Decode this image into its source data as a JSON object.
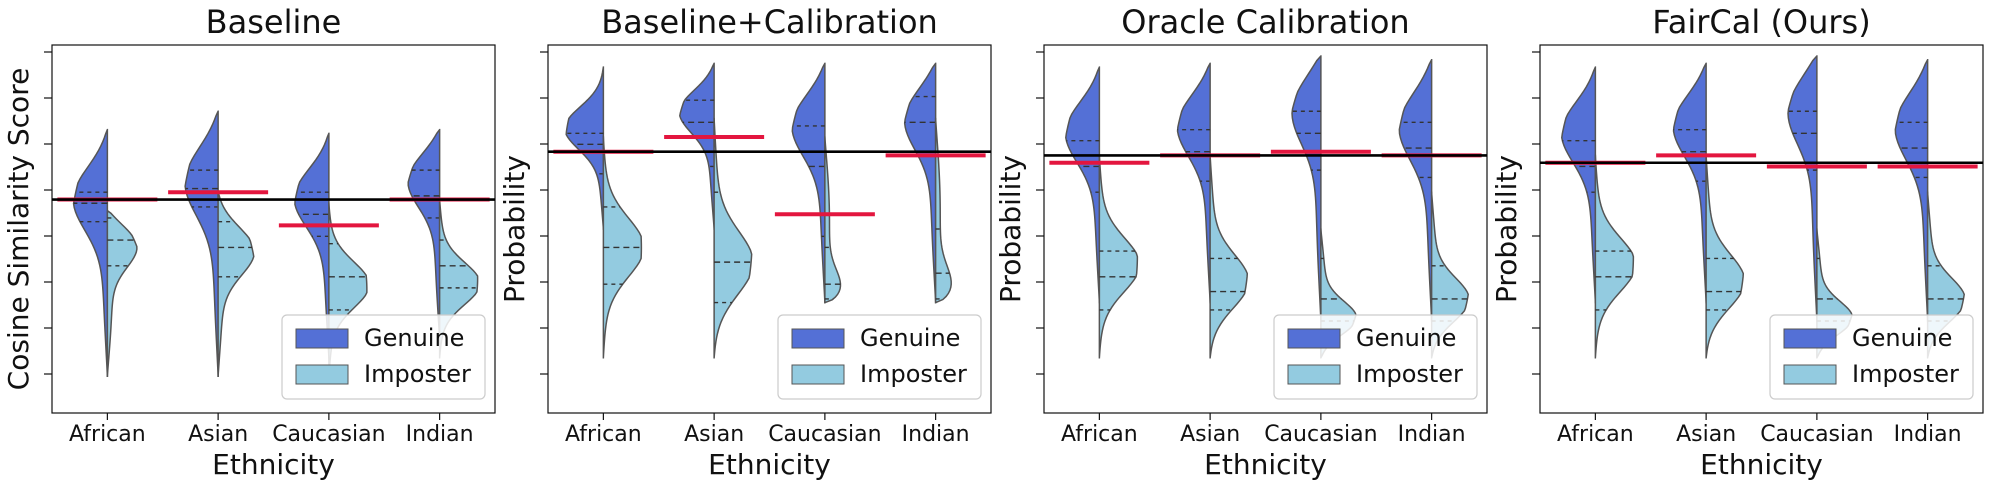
{
  "colors": {
    "genuine": "#5470d6",
    "imposter": "#93cbe0",
    "outline": "#555555",
    "threshold_line": "#000000",
    "group_threshold": "#e3163f"
  },
  "chart_data": [
    {
      "type": "violin",
      "title": "Baseline",
      "xlabel": "Ethnicity",
      "ylabel": "Cosine Similarity Score",
      "categories": [
        "African",
        "Asian",
        "Caucasian",
        "Indian"
      ],
      "ylim": [
        0,
        1
      ],
      "global_threshold": 0.58,
      "group_thresholds": [
        0.58,
        0.6,
        0.51,
        0.58
      ],
      "legend": {
        "position": "bottom-right",
        "entries": [
          "Genuine",
          "Imposter"
        ]
      },
      "series": [
        {
          "name": "Genuine",
          "ranges": [
            [
              0.1,
              0.77
            ],
            [
              0.1,
              0.82
            ],
            [
              0.15,
              0.76
            ],
            [
              0.2,
              0.77
            ]
          ],
          "modes": [
            0.6,
            0.65,
            0.6,
            0.65
          ],
          "quartiles": [
            [
              0.52,
              0.57,
              0.6
            ],
            [
              0.56,
              0.61,
              0.66
            ],
            [
              0.48,
              0.54,
              0.6
            ],
            [
              0.53,
              0.59,
              0.66
            ]
          ]
        },
        {
          "name": "Imposter",
          "ranges": [
            [
              0.1,
              0.55
            ],
            [
              0.1,
              0.6
            ],
            [
              0.1,
              0.57
            ],
            [
              0.15,
              0.58
            ]
          ],
          "modes": [
            0.47,
            0.45,
            0.35,
            0.35
          ],
          "quartiles": [
            [
              0.4,
              0.47,
              0.53
            ],
            [
              0.37,
              0.45,
              0.52
            ],
            [
              0.28,
              0.37,
              0.46
            ],
            [
              0.34,
              0.4,
              0.47
            ]
          ]
        }
      ]
    },
    {
      "type": "violin",
      "title": "Baseline+Calibration",
      "xlabel": "Ethnicity",
      "ylabel": "Probability",
      "categories": [
        "African",
        "Asian",
        "Caucasian",
        "Indian"
      ],
      "ylim": [
        0,
        1
      ],
      "global_threshold": 0.71,
      "group_thresholds": [
        0.71,
        0.75,
        0.54,
        0.7
      ],
      "legend": {
        "position": "bottom-right",
        "entries": [
          "Genuine",
          "Imposter"
        ]
      },
      "series": [
        {
          "name": "Genuine",
          "ranges": [
            [
              0.5,
              0.94
            ],
            [
              0.5,
              0.95
            ],
            [
              0.3,
              0.95
            ],
            [
              0.3,
              0.95
            ]
          ],
          "modes": [
            0.78,
            0.83,
            0.8,
            0.82
          ],
          "quartiles": [
            [
              0.65,
              0.73,
              0.76
            ],
            [
              0.67,
              0.79,
              0.85
            ],
            [
              0.48,
              0.67,
              0.78
            ],
            [
              0.71,
              0.79,
              0.86
            ]
          ]
        },
        {
          "name": "Imposter",
          "ranges": [
            [
              0.15,
              0.75
            ],
            [
              0.15,
              0.8
            ],
            [
              0.3,
              0.75
            ],
            [
              0.3,
              0.8
            ]
          ],
          "modes": [
            0.45,
            0.4,
            0.3,
            0.3
          ],
          "quartiles": [
            [
              0.35,
              0.45,
              0.56
            ],
            [
              0.3,
              0.41,
              0.6
            ],
            [
              0.31,
              0.35,
              0.45
            ],
            [
              0.31,
              0.38,
              0.5
            ]
          ]
        }
      ]
    },
    {
      "type": "violin",
      "title": "Oracle Calibration",
      "xlabel": "Ethnicity",
      "ylabel": "Probability",
      "categories": [
        "African",
        "Asian",
        "Caucasian",
        "Indian"
      ],
      "ylim": [
        0,
        1
      ],
      "global_threshold": 0.7,
      "group_thresholds": [
        0.68,
        0.7,
        0.71,
        0.7
      ],
      "legend": {
        "position": "bottom-right",
        "entries": [
          "Genuine",
          "Imposter"
        ]
      },
      "series": [
        {
          "name": "Genuine",
          "ranges": [
            [
              0.3,
              0.94
            ],
            [
              0.3,
              0.95
            ],
            [
              0.25,
              0.97
            ],
            [
              0.25,
              0.96
            ]
          ],
          "modes": [
            0.78,
            0.8,
            0.85,
            0.8
          ],
          "quartiles": [
            [
              0.6,
              0.67,
              0.74
            ],
            [
              0.63,
              0.71,
              0.77
            ],
            [
              0.66,
              0.76,
              0.82
            ],
            [
              0.64,
              0.72,
              0.79
            ]
          ]
        },
        {
          "name": "Imposter",
          "ranges": [
            [
              0.15,
              0.7
            ],
            [
              0.15,
              0.7
            ],
            [
              0.15,
              0.5
            ],
            [
              0.15,
              0.6
            ]
          ],
          "modes": [
            0.4,
            0.35,
            0.25,
            0.3
          ],
          "quartiles": [
            [
              0.28,
              0.37,
              0.44
            ],
            [
              0.28,
              0.33,
              0.42
            ],
            [
              0.25,
              0.31,
              0.42
            ],
            [
              0.25,
              0.31,
              0.4
            ]
          ]
        }
      ]
    },
    {
      "type": "violin",
      "title": "FairCal (Ours)",
      "xlabel": "Ethnicity",
      "ylabel": "Probability",
      "categories": [
        "African",
        "Asian",
        "Caucasian",
        "Indian"
      ],
      "ylim": [
        0,
        1
      ],
      "global_threshold": 0.68,
      "group_thresholds": [
        0.68,
        0.7,
        0.67,
        0.67
      ],
      "legend": {
        "position": "bottom-right",
        "entries": [
          "Genuine",
          "Imposter"
        ]
      },
      "series": [
        {
          "name": "Genuine",
          "ranges": [
            [
              0.3,
              0.94
            ],
            [
              0.3,
              0.95
            ],
            [
              0.25,
              0.97
            ],
            [
              0.25,
              0.96
            ]
          ],
          "modes": [
            0.78,
            0.8,
            0.85,
            0.8
          ],
          "quartiles": [
            [
              0.6,
              0.67,
              0.74
            ],
            [
              0.63,
              0.71,
              0.77
            ],
            [
              0.66,
              0.76,
              0.82
            ],
            [
              0.64,
              0.72,
              0.79
            ]
          ]
        },
        {
          "name": "Imposter",
          "ranges": [
            [
              0.15,
              0.7
            ],
            [
              0.15,
              0.7
            ],
            [
              0.15,
              0.5
            ],
            [
              0.15,
              0.6
            ]
          ],
          "modes": [
            0.4,
            0.35,
            0.25,
            0.3
          ],
          "quartiles": [
            [
              0.28,
              0.37,
              0.44
            ],
            [
              0.28,
              0.33,
              0.42
            ],
            [
              0.25,
              0.31,
              0.42
            ],
            [
              0.25,
              0.31,
              0.4
            ]
          ]
        }
      ]
    }
  ]
}
